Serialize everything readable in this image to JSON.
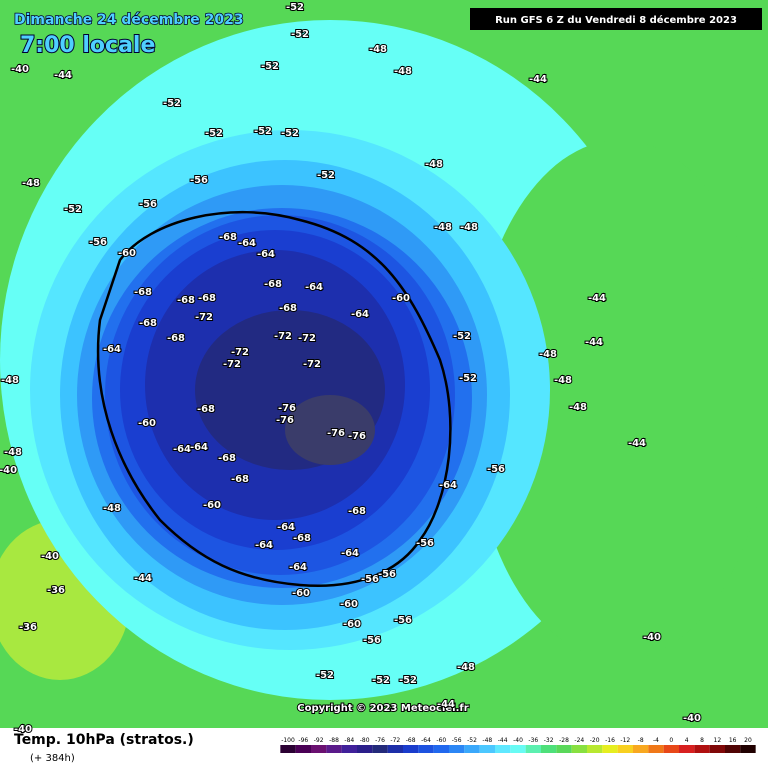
{
  "header": {
    "date": "Dimanche 24 décembre 2023",
    "time": "7:00 locale",
    "run": "Run GFS 6 Z du Vendredi 8 décembre 2023"
  },
  "copyright": "Copyright © 2023 Meteociel.fr",
  "footer": {
    "title": "Temp. 10hPa (stratos.)",
    "lead": "(+ 384h)"
  },
  "legend": {
    "ticks": [
      -100,
      -96,
      -92,
      -88,
      -84,
      -80,
      -76,
      -72,
      -68,
      -64,
      -60,
      -56,
      -52,
      -48,
      -44,
      -40,
      -36,
      -32,
      -28,
      -24,
      -20,
      -16,
      -12,
      -8,
      -4,
      0,
      4,
      8,
      12,
      16,
      20
    ],
    "colors": [
      "#2b0033",
      "#4a0055",
      "#6a1070",
      "#5a1a8a",
      "#40209a",
      "#2a1e8a",
      "#232a7a",
      "#1d2ea8",
      "#1a3ccc",
      "#1d52e0",
      "#2168ee",
      "#2b86f5",
      "#3aa8fb",
      "#4cc8ff",
      "#5fe8ff",
      "#68fbf4",
      "#5cf0b0",
      "#4ee07a",
      "#5ad85a",
      "#88e040",
      "#b8e830",
      "#e6ee20",
      "#f8d020",
      "#f8a820",
      "#f07818",
      "#e84818",
      "#d82020",
      "#b01010",
      "#800808",
      "#500404",
      "#200000"
    ]
  },
  "map_labels": [
    -76,
    -76,
    -76,
    -76,
    -72,
    -72,
    -72,
    -72,
    -72,
    -72,
    -68,
    -68,
    -68,
    -68,
    -68,
    -68,
    -68,
    -68,
    -68,
    -68,
    -68,
    -68,
    -68,
    -64,
    -64,
    -64,
    -64,
    -64,
    -64,
    -64,
    -64,
    -64,
    -64,
    -64,
    -64,
    -60,
    -60,
    -60,
    -60,
    -60,
    -60,
    -60,
    -56,
    -56,
    -56,
    -56,
    -56,
    -56,
    -56,
    -56,
    -56,
    -52,
    -52,
    -52,
    -52,
    -52,
    -52,
    -52,
    -52,
    -52,
    -52,
    -52,
    -52,
    -52,
    -52,
    -48,
    -48,
    -48,
    -48,
    -48,
    -48,
    -48,
    -48,
    -48,
    -48,
    -48,
    -48,
    -48,
    -44,
    -44,
    -44,
    -44,
    -44,
    -44,
    -44,
    -40,
    -40,
    -40,
    -40,
    -40,
    -40,
    -36,
    -36
  ]
}
